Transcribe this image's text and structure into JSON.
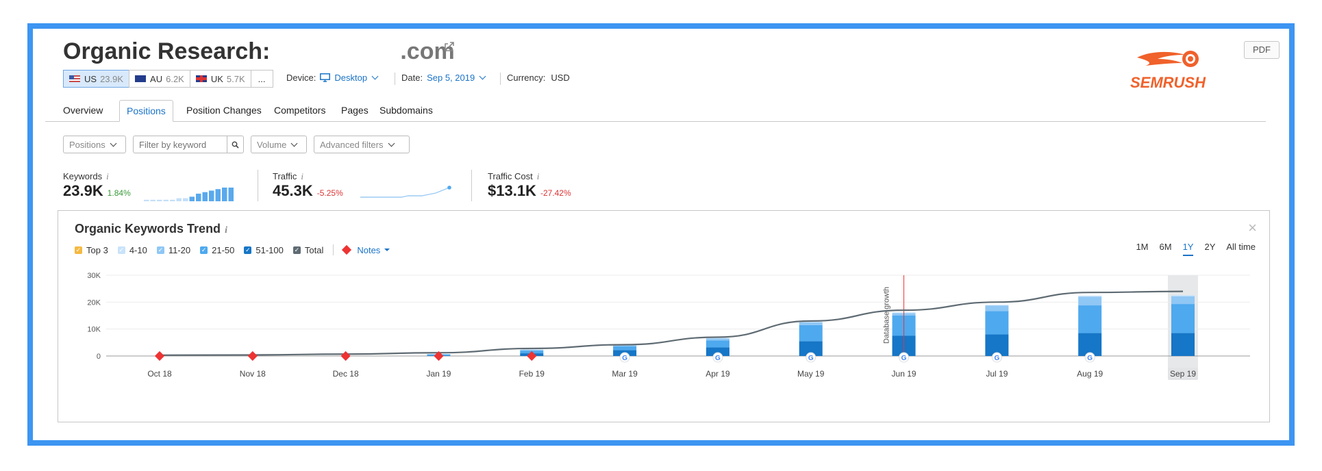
{
  "header": {
    "title": "Organic Research:",
    "domain": ".com",
    "pdf_label": "PDF",
    "logo_text": "SEMRUSH",
    "brand_color": "#f0612b"
  },
  "databases": [
    {
      "flag": "us",
      "code": "US",
      "count": "23.9K",
      "active": true
    },
    {
      "flag": "au",
      "code": "AU",
      "count": "6.2K",
      "active": false
    },
    {
      "flag": "uk",
      "code": "UK",
      "count": "5.7K",
      "active": false
    },
    {
      "more": "..."
    }
  ],
  "meta": {
    "device_label": "Device:",
    "device_value": "Desktop",
    "date_label": "Date:",
    "date_value": "Sep 5, 2019",
    "currency_label": "Currency:",
    "currency_value": "USD"
  },
  "nav_tabs": [
    {
      "label": "Overview",
      "active": false
    },
    {
      "label": "Positions",
      "active": true
    },
    {
      "label": "Position Changes",
      "active": false
    },
    {
      "label": "Competitors",
      "active": false
    },
    {
      "label": "Pages",
      "active": false
    },
    {
      "label": "Subdomains",
      "active": false
    }
  ],
  "filters": {
    "positions_label": "Positions",
    "keyword_placeholder": "Filter by keyword",
    "volume_label": "Volume",
    "advanced_label": "Advanced filters"
  },
  "metrics": [
    {
      "label": "Keywords",
      "value": "23.9K",
      "delta": "1.84%",
      "delta_sign": "pos",
      "info": "i"
    },
    {
      "label": "Traffic",
      "value": "45.3K",
      "delta": "-5.25%",
      "delta_sign": "neg",
      "info": "i"
    },
    {
      "label": "Traffic Cost",
      "value": "$13.1K",
      "delta": "-27.42%",
      "delta_sign": "neg",
      "info": "i"
    }
  ],
  "trend": {
    "title": "Organic Keywords Trend",
    "info": "i",
    "close": "×",
    "legend": [
      {
        "label": "Top 3",
        "color": "#f5b942",
        "checked": true
      },
      {
        "label": "4-10",
        "color": "#c9e3fa",
        "checked": true
      },
      {
        "label": "11-20",
        "color": "#8fc7f5",
        "checked": true
      },
      {
        "label": "21-50",
        "color": "#4ea9ee",
        "checked": true
      },
      {
        "label": "51-100",
        "color": "#1676c7",
        "checked": true
      },
      {
        "label": "Total",
        "color": "#5f6b73",
        "checked": true
      }
    ],
    "notes_label": "Notes",
    "ranges": [
      {
        "label": "1M",
        "active": false
      },
      {
        "label": "6M",
        "active": false
      },
      {
        "label": "1Y",
        "active": true
      },
      {
        "label": "2Y",
        "active": false
      },
      {
        "label": "All time",
        "active": false
      }
    ],
    "annotation": "Database growth"
  },
  "chart_data": {
    "type": "bar",
    "categories": [
      "Oct 18",
      "Nov 18",
      "Dec 18",
      "Jan 19",
      "Feb 19",
      "Mar 19",
      "Apr 19",
      "May 19",
      "Jun 19",
      "Jul 19",
      "Aug 19",
      "Sep 19"
    ],
    "ylim": [
      0,
      30000
    ],
    "yticks": [
      "0",
      "10K",
      "20K",
      "30K"
    ],
    "grid": true,
    "series": [
      {
        "name": "51-100",
        "color": "#1676c7",
        "values": [
          0,
          0,
          0,
          200,
          1000,
          2200,
          3200,
          5500,
          7500,
          8000,
          8500,
          8500
        ]
      },
      {
        "name": "21-50",
        "color": "#4ea9ee",
        "values": [
          0,
          0,
          0,
          400,
          1000,
          1400,
          2600,
          6000,
          7500,
          8700,
          10300,
          10800
        ]
      },
      {
        "name": "11-20",
        "color": "#8fc7f5",
        "values": [
          0,
          0,
          0,
          100,
          300,
          400,
          700,
          1000,
          900,
          2000,
          3200,
          2900
        ]
      },
      {
        "name": "4-10",
        "color": "#c9e3fa",
        "values": [
          0,
          0,
          0,
          0,
          100,
          200,
          200,
          300,
          300,
          300,
          400,
          400
        ]
      },
      {
        "name": "Top 3",
        "color": "#f5b942",
        "values": [
          0,
          0,
          0,
          0,
          0,
          0,
          0,
          0,
          0,
          0,
          0,
          0
        ]
      }
    ],
    "total_line": {
      "name": "Total",
      "color": "#5f6b73",
      "values": [
        300,
        400,
        700,
        1200,
        2800,
        4200,
        7000,
        13000,
        17000,
        20000,
        23600,
        24000
      ]
    },
    "notes_months": [
      "Oct 18",
      "Nov 18",
      "Dec 18",
      "Jan 19",
      "Feb 19"
    ],
    "google_update_months": [
      "Mar 19",
      "Apr 19",
      "May 19",
      "Jun 19",
      "Jul 19",
      "Aug 19"
    ],
    "highlighted_category": "Sep 19"
  },
  "sparklines": {
    "keywords_bars": [
      1,
      1,
      1,
      1,
      1,
      2,
      2,
      3,
      5,
      6,
      7,
      8,
      9,
      9
    ],
    "traffic_line": [
      2,
      2,
      2,
      2,
      2,
      2,
      2,
      3,
      3,
      3,
      4,
      5,
      7,
      9
    ]
  }
}
